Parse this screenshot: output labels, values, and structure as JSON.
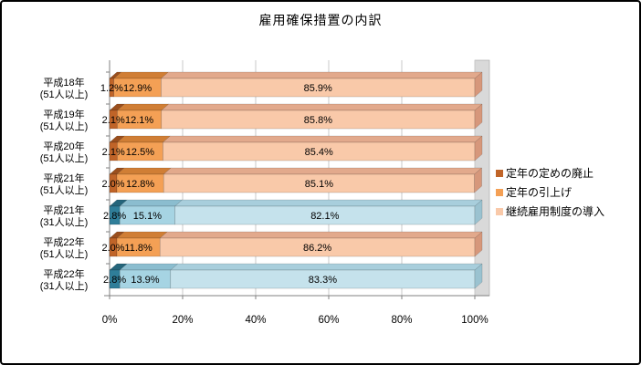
{
  "title": "雇用確保措置の内訳",
  "chart_data": {
    "type": "bar",
    "stacked": true,
    "orientation": "horizontal",
    "unit": "%",
    "xlim": [
      0,
      100
    ],
    "x_ticks": [
      "0%",
      "20%",
      "40%",
      "60%",
      "80%",
      "100%"
    ],
    "categories": [
      {
        "line1": "平成18年",
        "line2": "(51人以上)"
      },
      {
        "line1": "平成19年",
        "line2": "(51人以上)"
      },
      {
        "line1": "平成20年",
        "line2": "(51人以上)"
      },
      {
        "line1": "平成21年",
        "line2": "(51人以上)"
      },
      {
        "line1": "平成21年",
        "line2": "(31人以上)"
      },
      {
        "line1": "平成22年",
        "line2": "(51人以上)"
      },
      {
        "line1": "平成22年",
        "line2": "(31人以上)"
      }
    ],
    "series": [
      {
        "name": "定年の定めの廃止",
        "values": [
          1.2,
          2.1,
          2.1,
          2.0,
          2.8,
          2.0,
          2.8
        ]
      },
      {
        "name": "定年の引上げ",
        "values": [
          12.9,
          12.1,
          12.5,
          12.8,
          15.1,
          11.8,
          13.9
        ]
      },
      {
        "name": "継続雇用制度の導入",
        "values": [
          85.9,
          85.8,
          85.4,
          85.1,
          82.1,
          86.2,
          83.3
        ]
      }
    ],
    "row_palette": [
      "orange",
      "orange",
      "orange",
      "orange",
      "blue",
      "orange",
      "blue"
    ],
    "colors": {
      "orange": [
        {
          "front": "#C06428",
          "top": "#9A4F1E",
          "side": "#8B481B"
        },
        {
          "front": "#F4A055",
          "top": "#D07E35",
          "side": "#BF742F"
        },
        {
          "front": "#F9C9A9",
          "top": "#E2A98C",
          "side": "#D6977B"
        }
      ],
      "blue": [
        {
          "front": "#2F7E99",
          "top": "#25657B",
          "side": "#215A6E"
        },
        {
          "front": "#A6D4E3",
          "top": "#8BBDCF",
          "side": "#7FB1C3"
        },
        {
          "front": "#C5E2EC",
          "top": "#A8CEDC",
          "side": "#9AC2D0"
        }
      ]
    },
    "gridline_color": "#C8C8C8",
    "axis_color": "#808080",
    "wall_color": "#D9D9D9",
    "legend": {
      "position": "right",
      "entries": [
        {
          "label": "定年の定めの廃止",
          "color": "#C06428"
        },
        {
          "label": "定年の引上げ",
          "color": "#F4A055"
        },
        {
          "label": "継続雇用制度の導入",
          "color": "#F9C9A9"
        }
      ]
    }
  }
}
